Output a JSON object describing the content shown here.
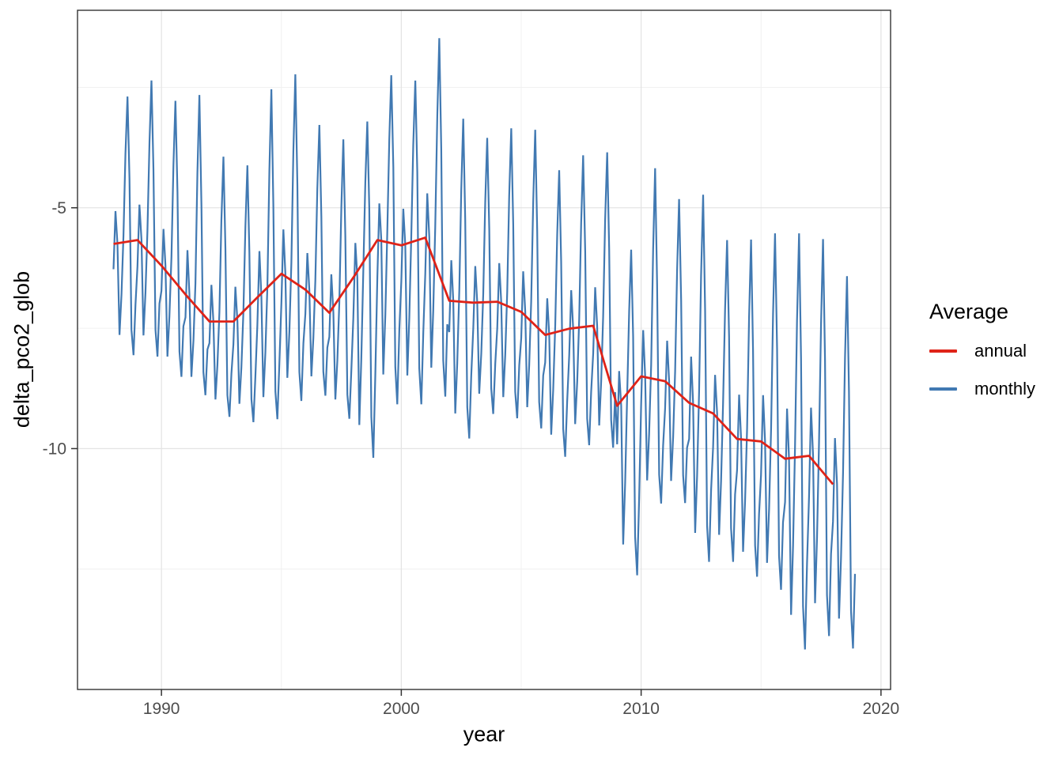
{
  "figure": {
    "background": "#FFFFFF",
    "panel_border_color": "#333333",
    "grid_major_color": "#E4E4E4",
    "grid_minor_color": "#F0F0F0"
  },
  "chart_data": {
    "type": "line",
    "title": "",
    "xlabel": "year",
    "ylabel": "delta_pco2_glob",
    "x_domain": [
      1986.5,
      2020.4
    ],
    "y_domain": [
      -15.0,
      -0.9
    ],
    "grid": true,
    "x_ticks": {
      "major": [
        {
          "value": 1990,
          "label": "1990"
        },
        {
          "value": 2000,
          "label": "2000"
        },
        {
          "value": 2010,
          "label": "2010"
        },
        {
          "value": 2020,
          "label": "2020"
        }
      ],
      "minor": [
        1995,
        2005,
        2015
      ]
    },
    "y_ticks": {
      "major": [
        {
          "value": -5,
          "label": "-5"
        },
        {
          "value": -10,
          "label": "-10"
        }
      ],
      "minor": [
        -2.5,
        -7.5,
        -12.5
      ]
    },
    "legend": {
      "title": "Average",
      "position": "right",
      "items": [
        {
          "name": "annual",
          "color": "#DF2318"
        },
        {
          "name": "monthly",
          "color": "#4179B2"
        }
      ]
    },
    "series": {
      "annual": {
        "name": "annual",
        "color": "#DF2318",
        "linewidth": 2.8,
        "years": [
          1988,
          1989,
          1990,
          1991,
          1992,
          1993,
          1994,
          1995,
          1996,
          1997,
          1998,
          1999,
          2000,
          2001,
          2002,
          2003,
          2004,
          2005,
          2006,
          2007,
          2008,
          2009,
          2010,
          2011,
          2012,
          2013,
          2014,
          2015,
          2016,
          2017,
          2018
        ],
        "values": [
          -5.75,
          -5.67,
          -6.2,
          -6.8,
          -7.36,
          -7.36,
          -6.86,
          -6.37,
          -6.7,
          -7.18,
          -6.45,
          -5.67,
          -5.78,
          -5.62,
          -6.93,
          -6.97,
          -6.95,
          -7.16,
          -7.64,
          -7.51,
          -7.45,
          -9.11,
          -8.5,
          -8.6,
          -9.05,
          -9.27,
          -9.8,
          -9.85,
          -10.21,
          -10.15,
          -10.74
        ]
      },
      "monthly": {
        "name": "monthly",
        "color": "#4179B2",
        "linewidth": 2.2,
        "start": "1988-01",
        "end": "2018-12",
        "construction": "value(year,month) = annual_mean(year) + amplitude(year) * seasonal_offset(month); amplitude = peak_amplitude if offset >= 0 else trough_amplitude",
        "seasonal_offsets": [
          -0.5,
          0.8,
          0.0,
          -1.8,
          -1.0,
          0.2,
          2.2,
          3.6,
          1.6,
          -1.7,
          -2.2,
          -1.2
        ],
        "peak_amplitude": [
          0.85,
          0.92,
          0.95,
          1.15,
          0.95,
          0.9,
          1.2,
          1.15,
          0.95,
          1.0,
          0.9,
          0.95,
          0.95,
          1.15,
          1.05,
          0.95,
          1.0,
          1.05,
          0.95,
          1.0,
          1.0,
          0.9,
          1.2,
          1.05,
          1.2,
          1.0,
          1.15,
          1.2,
          1.3,
          1.25,
          1.2
        ],
        "trough_amplitude": [
          1.05,
          1.1,
          1.05,
          0.95,
          0.9,
          0.95,
          1.15,
          1.2,
          1.0,
          1.0,
          1.7,
          1.55,
          1.5,
          1.5,
          1.3,
          1.05,
          1.1,
          1.1,
          1.15,
          1.1,
          1.15,
          1.6,
          1.2,
          1.15,
          1.5,
          1.4,
          1.3,
          1.4,
          1.8,
          1.7,
          1.55
        ],
        "observed_extremes": {
          "highest_monthly_value": -1.55,
          "highest_monthly_when": "2001-08",
          "lowest_monthly_value": -14.35,
          "lowest_monthly_when": "2016-11"
        }
      }
    }
  }
}
